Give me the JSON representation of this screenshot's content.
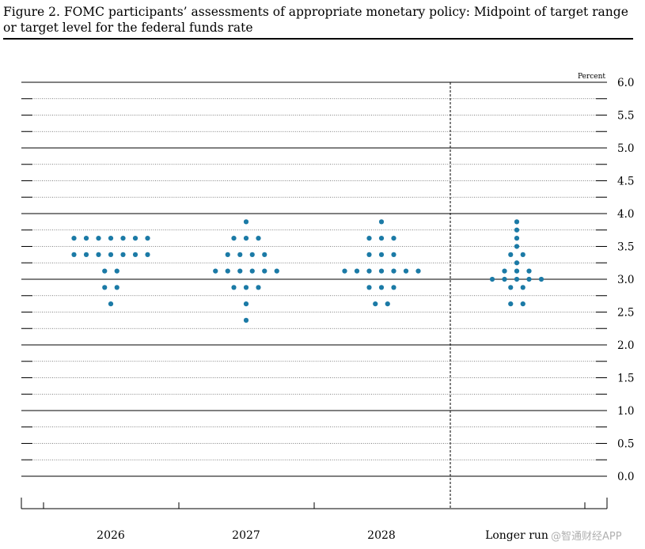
{
  "figure": {
    "caption_line1": "Figure 2. FOMC participants’ assessments of appropriate monetary policy: Midpoint of target range",
    "caption_line2": "or target level for the federal funds rate"
  },
  "watermark": "@智通财经APP",
  "chart_data": {
    "type": "scatter",
    "title": "Figure 2. FOMC participants’ assessments of appropriate monetary policy: Midpoint of target range or target level for the federal funds rate",
    "ylabel": "Percent",
    "ylim": [
      0,
      6
    ],
    "y_ticks": [
      "6.0",
      "5.5",
      "5.0",
      "4.5",
      "4.0",
      "3.5",
      "3.0",
      "2.5",
      "2.0",
      "1.5",
      "1.0",
      "0.5",
      "0.0"
    ],
    "grid": "dotted minor lines at 0.25, solid major lines at each whole percent",
    "categories": [
      "2026",
      "2027",
      "2028",
      "Longer run"
    ],
    "dot_color": "#1b7aa6",
    "dots": [
      {
        "category": "2026",
        "rates": [
          {
            "y": 3.625,
            "count": 7
          },
          {
            "y": 3.375,
            "count": 7
          },
          {
            "y": 3.125,
            "count": 2
          },
          {
            "y": 2.875,
            "count": 2
          },
          {
            "y": 2.625,
            "count": 1
          }
        ]
      },
      {
        "category": "2027",
        "rates": [
          {
            "y": 3.875,
            "count": 1
          },
          {
            "y": 3.625,
            "count": 3
          },
          {
            "y": 3.375,
            "count": 4
          },
          {
            "y": 3.125,
            "count": 6
          },
          {
            "y": 2.875,
            "count": 3
          },
          {
            "y": 2.625,
            "count": 1
          },
          {
            "y": 2.375,
            "count": 1
          }
        ]
      },
      {
        "category": "2028",
        "rates": [
          {
            "y": 3.875,
            "count": 1
          },
          {
            "y": 3.625,
            "count": 3
          },
          {
            "y": 3.375,
            "count": 3
          },
          {
            "y": 3.125,
            "count": 7
          },
          {
            "y": 2.875,
            "count": 3
          },
          {
            "y": 2.625,
            "count": 2
          }
        ]
      },
      {
        "category": "Longer run",
        "rates": [
          {
            "y": 3.875,
            "count": 1
          },
          {
            "y": 3.75,
            "count": 1
          },
          {
            "y": 3.625,
            "count": 1
          },
          {
            "y": 3.5,
            "count": 1
          },
          {
            "y": 3.375,
            "count": 2
          },
          {
            "y": 3.25,
            "count": 1
          },
          {
            "y": 3.125,
            "count": 3
          },
          {
            "y": 3.0,
            "count": 5
          },
          {
            "y": 2.875,
            "count": 2
          },
          {
            "y": 2.625,
            "count": 2
          }
        ]
      }
    ]
  }
}
